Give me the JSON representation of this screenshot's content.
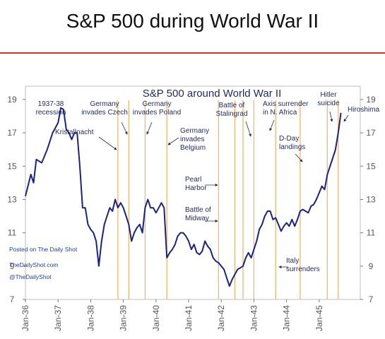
{
  "page": {
    "title": "S&P 500 during World War II"
  },
  "chart_data": {
    "type": "line",
    "title": "S&P 500 around World War II",
    "xlabel": "",
    "ylabel": "",
    "x_ticks": [
      "Jan-36",
      "Jan-37",
      "Jan-38",
      "Jan-39",
      "Jan-40",
      "Jan-41",
      "Jan-42",
      "Jan-43",
      "Jan-44",
      "Jan-45"
    ],
    "y_ticks": [
      7,
      9,
      11,
      13,
      15,
      17,
      19
    ],
    "xlim": [
      "Jan-36",
      "Sep-45"
    ],
    "ylim": [
      7,
      19.8
    ],
    "colors": {
      "line": "#1a237e",
      "event_line": "#f5b979",
      "text": "#1f2a5c",
      "credit": "#1f3fa0",
      "title_rule": "#c0392b"
    },
    "series": [
      {
        "points": [
          [
            "Jan-36",
            13.2
          ],
          [
            "Mar-36",
            14.5
          ],
          [
            "Apr-36",
            14.0
          ],
          [
            "May-36",
            15.4
          ],
          [
            "Jul-36",
            15.2
          ],
          [
            "Sep-36",
            16.0
          ],
          [
            "Nov-36",
            17.0
          ],
          [
            "Jan-37",
            17.6
          ],
          [
            "Feb-37",
            18.5
          ],
          [
            "Mar-37",
            18.4
          ],
          [
            "Apr-37",
            17.2
          ],
          [
            "May-37",
            17.0
          ],
          [
            "Jun-37",
            16.6
          ],
          [
            "Jul-37",
            17.0
          ],
          [
            "Aug-37",
            17.0
          ],
          [
            "Sep-37",
            15.0
          ],
          [
            "Oct-37",
            12.5
          ],
          [
            "Nov-37",
            12.5
          ],
          [
            "Dec-37",
            11.5
          ],
          [
            "Jan-38",
            11.2
          ],
          [
            "Feb-38",
            11.0
          ],
          [
            "Mar-38",
            10.5
          ],
          [
            "Apr-38",
            9.0
          ],
          [
            "May-38",
            10.5
          ],
          [
            "Jun-38",
            11.5
          ],
          [
            "Jul-38",
            12.0
          ],
          [
            "Aug-38",
            12.5
          ],
          [
            "Sep-38",
            12.3
          ],
          [
            "Oct-38",
            13.0
          ],
          [
            "Nov-38",
            12.5
          ],
          [
            "Dec-38",
            12.8
          ],
          [
            "Jan-39",
            12.5
          ],
          [
            "Feb-39",
            12.0
          ],
          [
            "Mar-39",
            11.5
          ],
          [
            "Apr-39",
            10.5
          ],
          [
            "May-39",
            11.0
          ],
          [
            "Jun-39",
            11.3
          ],
          [
            "Jul-39",
            11.5
          ],
          [
            "Aug-39",
            11.0
          ],
          [
            "Sep-39",
            12.5
          ],
          [
            "Oct-39",
            13.0
          ],
          [
            "Nov-39",
            12.5
          ],
          [
            "Dec-39",
            12.5
          ],
          [
            "Jan-40",
            12.2
          ],
          [
            "Feb-40",
            12.5
          ],
          [
            "Mar-40",
            12.8
          ],
          [
            "Apr-40",
            12.5
          ],
          [
            "May-40",
            9.5
          ],
          [
            "Jun-40",
            9.8
          ],
          [
            "Jul-40",
            10.0
          ],
          [
            "Aug-40",
            10.3
          ],
          [
            "Sep-40",
            10.8
          ],
          [
            "Oct-40",
            11.0
          ],
          [
            "Nov-40",
            11.0
          ],
          [
            "Dec-40",
            10.8
          ],
          [
            "Jan-41",
            10.5
          ],
          [
            "Feb-41",
            10.0
          ],
          [
            "Mar-41",
            10.3
          ],
          [
            "Apr-41",
            9.8
          ],
          [
            "May-41",
            9.7
          ],
          [
            "Jun-41",
            9.9
          ],
          [
            "Jul-41",
            10.5
          ],
          [
            "Aug-41",
            10.2
          ],
          [
            "Sep-41",
            10.0
          ],
          [
            "Oct-41",
            9.5
          ],
          [
            "Nov-41",
            9.3
          ],
          [
            "Dec-41",
            9.2
          ],
          [
            "Jan-42",
            9.0
          ],
          [
            "Feb-42",
            8.8
          ],
          [
            "Mar-42",
            8.3
          ],
          [
            "Apr-42",
            7.8
          ],
          [
            "May-42",
            8.2
          ],
          [
            "Jun-42",
            8.5
          ],
          [
            "Jul-42",
            8.8
          ],
          [
            "Aug-42",
            8.9
          ],
          [
            "Sep-42",
            9.0
          ],
          [
            "Oct-42",
            9.5
          ],
          [
            "Nov-42",
            9.8
          ],
          [
            "Dec-42",
            9.5
          ],
          [
            "Jan-43",
            10.0
          ],
          [
            "Feb-43",
            10.5
          ],
          [
            "Mar-43",
            11.2
          ],
          [
            "Apr-43",
            11.5
          ],
          [
            "May-43",
            12.0
          ],
          [
            "Jun-43",
            12.3
          ],
          [
            "Jul-43",
            12.3
          ],
          [
            "Aug-43",
            11.8
          ],
          [
            "Sep-43",
            11.9
          ],
          [
            "Oct-43",
            11.5
          ],
          [
            "Nov-43",
            11.1
          ],
          [
            "Dec-43",
            11.4
          ],
          [
            "Jan-44",
            11.6
          ],
          [
            "Feb-44",
            11.4
          ],
          [
            "Mar-44",
            11.8
          ],
          [
            "Apr-44",
            11.4
          ],
          [
            "May-44",
            11.8
          ],
          [
            "Jun-44",
            12.3
          ],
          [
            "Jul-44",
            12.4
          ],
          [
            "Aug-44",
            12.3
          ],
          [
            "Sep-44",
            12.2
          ],
          [
            "Oct-44",
            12.6
          ],
          [
            "Nov-44",
            12.7
          ],
          [
            "Dec-44",
            13.0
          ],
          [
            "Jan-45",
            13.4
          ],
          [
            "Feb-45",
            13.8
          ],
          [
            "Mar-45",
            13.6
          ],
          [
            "Apr-45",
            14.5
          ],
          [
            "May-45",
            15.0
          ],
          [
            "Jun-45",
            15.5
          ],
          [
            "Jul-45",
            16.0
          ],
          [
            "Aug-45",
            17.0
          ],
          [
            "Sep-45",
            18.2
          ]
        ]
      }
    ],
    "events": [
      {
        "date": "Nov-38",
        "label": [
          "Kristallnacht"
        ]
      },
      {
        "date": "Mar-39",
        "label": [
          "Germany",
          "invades Czech"
        ]
      },
      {
        "date": "Sep-39",
        "label": [
          "Germany",
          "invades Poland"
        ]
      },
      {
        "date": "May-40",
        "label": [
          "Germany",
          "invades",
          "Belgium"
        ]
      },
      {
        "date": "Dec-41",
        "label": [
          "Pearl",
          "Harbor"
        ]
      },
      {
        "date": "Jun-42",
        "label": [
          "Battle of",
          "Midway"
        ]
      },
      {
        "date": "Sep-42",
        "label": [
          "Battle of",
          "Stalingrad"
        ]
      },
      {
        "date": "Jan-43",
        "label": [
          "Axis surrender",
          "in N. Africa"
        ]
      },
      {
        "date": "Sep-43",
        "label": [
          "Italy",
          "surrenders"
        ]
      },
      {
        "date": "Jun-44",
        "label": [
          "D-Day",
          "landings"
        ]
      },
      {
        "date": "Apr-45",
        "label": [
          "Hitler",
          "suicide"
        ]
      },
      {
        "date": "Aug-45",
        "label": [
          "Hiroshima"
        ]
      }
    ],
    "annotations": [
      {
        "label": [
          "1937-38",
          "recession"
        ]
      }
    ],
    "credits": [
      "Posted on The Daily Shot",
      "TheDailyShot.com",
      "@TheDailyShot"
    ],
    "grid": false
  }
}
